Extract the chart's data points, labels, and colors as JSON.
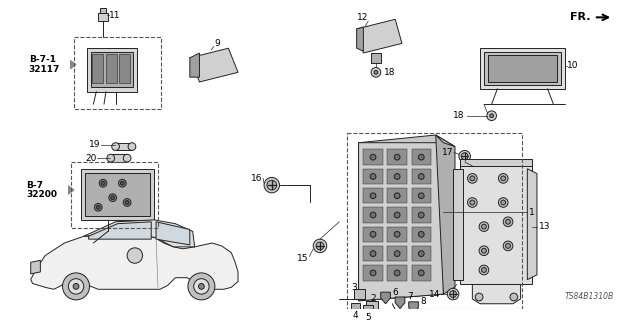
{
  "bg_color": "#ffffff",
  "part_number": "TS84B1310B",
  "line_color": "#222222",
  "text_color": "#000000",
  "fs_label": 6.5,
  "fs_ref": 7,
  "fs_pn": 5.5
}
